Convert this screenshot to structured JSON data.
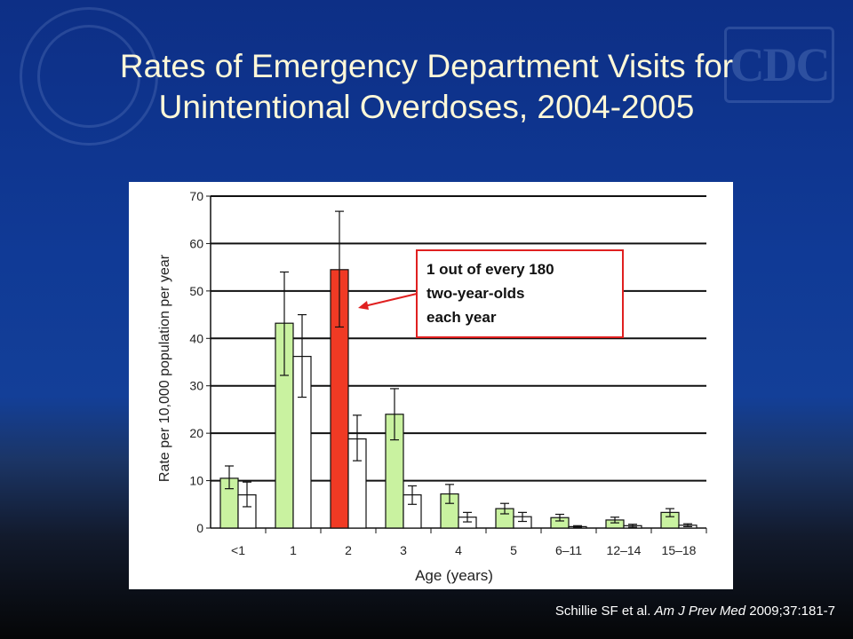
{
  "title": "Rates of Emergency Department Visits for Unintentional Overdoses, 2004-2005",
  "citation": {
    "authors": "Schillie SF et al. ",
    "journal": "Am J Prev Med",
    "details": " 2009;37:181-7"
  },
  "annotation": {
    "lines": [
      "1 out of every 180",
      "two-year-olds",
      "each year"
    ],
    "color": "#e02020"
  },
  "chart_data": {
    "type": "bar",
    "xlabel": "Age (years)",
    "ylabel": "Rate per 10,000 population per year",
    "ylim": [
      0,
      70
    ],
    "yticks": [
      0,
      10,
      20,
      30,
      40,
      50,
      60,
      70
    ],
    "grid": true,
    "categories": [
      "<1",
      "1",
      "2",
      "3",
      "4",
      "5",
      "6–11",
      "12–14",
      "15–18"
    ],
    "series": [
      {
        "values": [
          10.5,
          43.2,
          54.5,
          24.0,
          7.2,
          4.1,
          2.2,
          1.7,
          3.3
        ],
        "err_low": [
          8.3,
          32.2,
          42.4,
          18.6,
          5.2,
          3.0,
          1.5,
          1.1,
          2.4
        ],
        "err_high": [
          13.1,
          54.0,
          66.8,
          29.4,
          9.2,
          5.2,
          2.9,
          2.3,
          4.1
        ],
        "color": "#c9f2a0",
        "highlight_color": "#f03a24",
        "highlight_index": 2
      },
      {
        "values": [
          7.0,
          36.2,
          18.8,
          7.0,
          2.3,
          2.4,
          0.3,
          0.5,
          0.6
        ],
        "err_low": [
          4.5,
          27.6,
          14.2,
          5.0,
          1.3,
          1.4,
          0.1,
          0.2,
          0.3
        ],
        "err_high": [
          9.7,
          45.0,
          23.8,
          8.9,
          3.3,
          3.3,
          0.5,
          0.8,
          0.9
        ],
        "color": "#ffffff"
      }
    ]
  }
}
